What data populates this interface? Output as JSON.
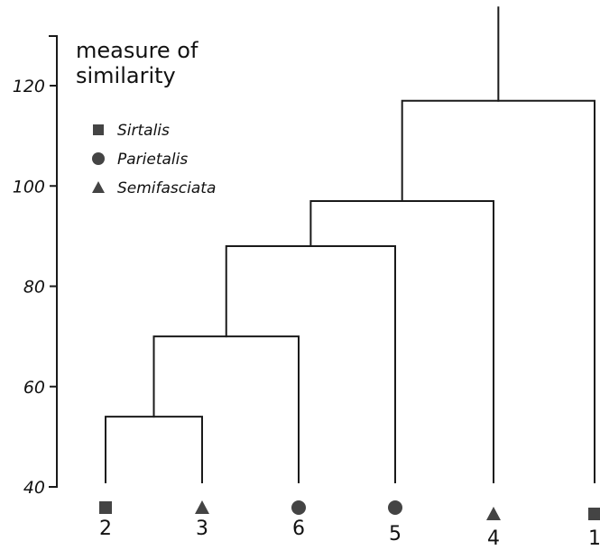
{
  "axis": {
    "title_line1": "measure of",
    "title_line2": "similarity",
    "ticks": [
      {
        "value": 120,
        "label": "120"
      },
      {
        "value": 100,
        "label": "100"
      },
      {
        "value": 80,
        "label": "80"
      },
      {
        "value": 60,
        "label": "60"
      },
      {
        "value": 40,
        "label": "40"
      }
    ],
    "range": [
      40,
      130
    ]
  },
  "legend": [
    {
      "shape": "square",
      "label": "Sirtalis"
    },
    {
      "shape": "circle",
      "label": "Parietalis"
    },
    {
      "shape": "triangle",
      "label": "Semifasciata"
    }
  ],
  "leaves": [
    {
      "id": "2",
      "label": "2",
      "shape": "square"
    },
    {
      "id": "3",
      "label": "3",
      "shape": "triangle"
    },
    {
      "id": "6",
      "label": "6",
      "shape": "circle"
    },
    {
      "id": "5",
      "label": "5",
      "shape": "circle"
    },
    {
      "id": "4",
      "label": "4",
      "shape": "triangle"
    },
    {
      "id": "1",
      "label": "1",
      "shape": "square"
    }
  ],
  "merges": [
    {
      "left": "2",
      "right": "3",
      "height": 54
    },
    {
      "left": "m0",
      "right": "6",
      "height": 70
    },
    {
      "left": "m1",
      "right": "5",
      "height": 88
    },
    {
      "left": "m2",
      "right": "4",
      "height": 97
    },
    {
      "left": "m3",
      "right": "1",
      "height": 117
    }
  ],
  "root_top": 132,
  "colors": {
    "ink": "#1a1a1a",
    "marker": "#444444"
  }
}
